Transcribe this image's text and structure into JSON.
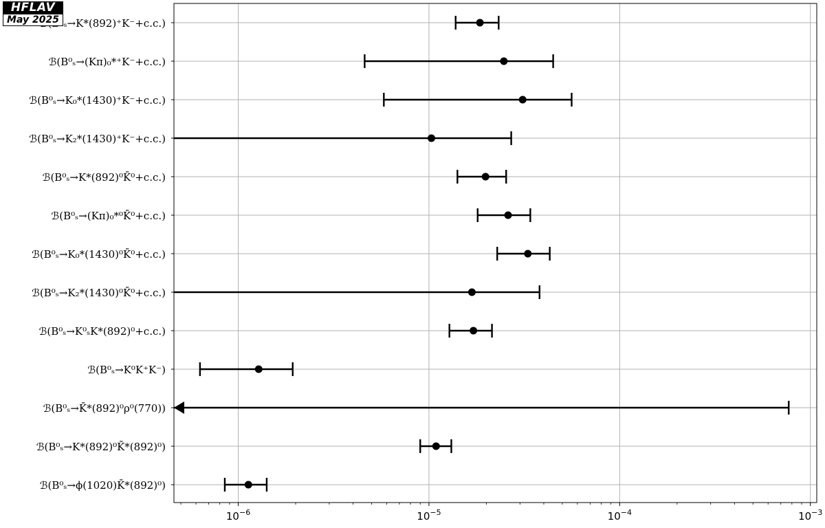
{
  "badge": {
    "title": "HFLAV",
    "date": "May 2025"
  },
  "chart_data": {
    "type": "scatter",
    "xscale": "log",
    "xlim": [
      4.6e-07,
      0.00108
    ],
    "xticks": [
      {
        "value": 1e-06,
        "mantissa": "10",
        "exp": "−6"
      },
      {
        "value": 1e-05,
        "mantissa": "10",
        "exp": "−5"
      },
      {
        "value": 0.0001,
        "mantissa": "10",
        "exp": "−4"
      },
      {
        "value": 0.001,
        "mantissa": "10",
        "exp": "−3"
      }
    ],
    "grid": true,
    "entries": [
      {
        "label": "ℬ(B⁰ₛ→K*(892)⁺K⁻+c.c.)",
        "value": 1.85e-05,
        "low": 1.38e-05,
        "high": 2.32e-05
      },
      {
        "label": "ℬ(B⁰ₛ→(Kπ)₀*⁺K⁻+c.c.)",
        "value": 2.47e-05,
        "low": 4.6e-06,
        "high": 4.48e-05
      },
      {
        "label": "ℬ(B⁰ₛ→K₀*(1430)⁺K⁻+c.c.)",
        "value": 3.1e-05,
        "low": 5.8e-06,
        "high": 5.6e-05
      },
      {
        "label": "ℬ(B⁰ₛ→K₂*(1430)⁺K⁻+c.c.)",
        "value": 1.03e-05,
        "low": 4.6e-07,
        "high": 2.7e-05
      },
      {
        "label": "ℬ(B⁰ₛ→K*(892)⁰K̄⁰+c.c.)",
        "value": 1.98e-05,
        "low": 1.41e-05,
        "high": 2.54e-05
      },
      {
        "label": "ℬ(B⁰ₛ→(Kπ)₀*⁰K̄⁰+c.c.)",
        "value": 2.6e-05,
        "low": 1.8e-05,
        "high": 3.4e-05
      },
      {
        "label": "ℬ(B⁰ₛ→K₀*(1430)⁰K̄⁰+c.c.)",
        "value": 3.3e-05,
        "low": 2.28e-05,
        "high": 4.3e-05
      },
      {
        "label": "ℬ(B⁰ₛ→K₂*(1430)⁰K̄⁰+c.c.)",
        "value": 1.68e-05,
        "low": 4.6e-07,
        "high": 3.8e-05
      },
      {
        "label": "ℬ(B⁰ₛ→K⁰ₛK*(892)⁰+c.c.)",
        "value": 1.71e-05,
        "low": 1.28e-05,
        "high": 2.14e-05
      },
      {
        "label": "ℬ(B⁰ₛ→K⁰K⁺K⁻)",
        "value": 1.28e-06,
        "low": 6.3e-07,
        "high": 1.93e-06
      },
      {
        "label": "ℬ(B⁰ₛ→K̄*(892)⁰ρ⁰(770))",
        "value": null,
        "low": null,
        "high": 0.00077
      },
      {
        "label": "ℬ(B⁰ₛ→K*(892)⁰K̄*(892)⁰)",
        "value": 1.09e-05,
        "low": 9e-06,
        "high": 1.31e-05
      },
      {
        "label": "ℬ(B⁰ₛ→ϕ(1020)K̄*(892)⁰)",
        "value": 1.13e-06,
        "low": 8.5e-07,
        "high": 1.41e-06
      }
    ]
  }
}
